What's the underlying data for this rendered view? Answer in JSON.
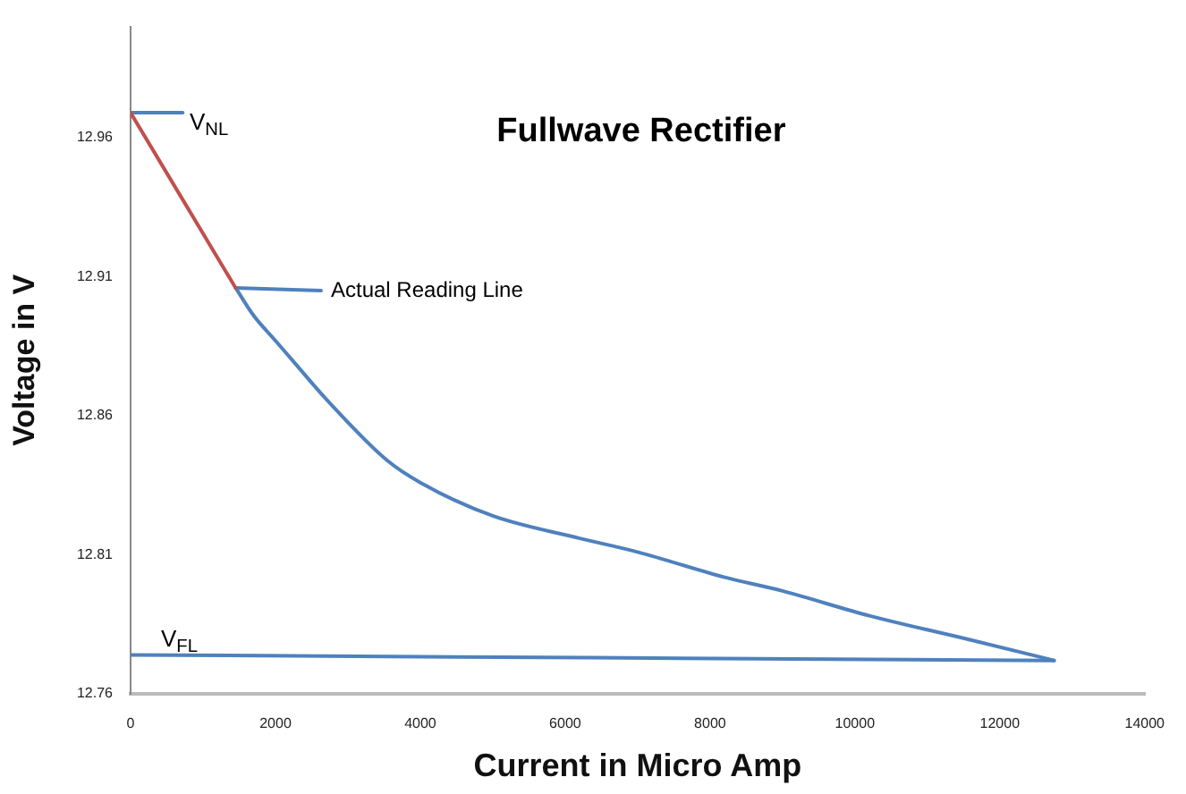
{
  "chart_data": {
    "type": "line",
    "title": "Fullwave Rectifier",
    "xlabel": "Current in Micro Amp",
    "ylabel": "Voltage in V",
    "xlim": [
      0,
      14000
    ],
    "xticks": [
      0,
      2000,
      4000,
      6000,
      8000,
      10000,
      12000,
      14000
    ],
    "ylim": [
      12.76,
      13.0
    ],
    "yticks": [
      12.76,
      12.81,
      12.86,
      12.91,
      12.96
    ],
    "series": [
      {
        "color": "#c0504d",
        "x": [
          0,
          1450
        ],
        "values": [
          12.969,
          12.906
        ]
      },
      {
        "color": "#4f81bd",
        "x": [
          1450,
          1700,
          2000,
          2265,
          2700,
          3540,
          4000,
          5000,
          6190,
          7000,
          8190,
          9000,
          10210,
          11500,
          12750
        ],
        "values": [
          12.906,
          12.896,
          12.887,
          12.879,
          12.866,
          12.844,
          12.836,
          12.824,
          12.816,
          12.811,
          12.802,
          12.797,
          12.788,
          12.78,
          12.772
        ]
      },
      {
        "color": "#4f81bd",
        "x": [
          0,
          12750
        ],
        "values": [
          12.774,
          12.772
        ]
      },
      {
        "color": "#4f81bd",
        "x": [
          0,
          720
        ],
        "values": [
          12.969,
          12.969
        ]
      },
      {
        "color": "#4f81bd",
        "x": [
          1450,
          2630
        ],
        "values": [
          12.906,
          12.905
        ]
      }
    ],
    "annotations": [
      "V$_{NL}$",
      "Actual Reading Line",
      "V$_{FL}$"
    ],
    "grid": false,
    "legend": false,
    "marker": "none",
    "line_style": "solid"
  }
}
